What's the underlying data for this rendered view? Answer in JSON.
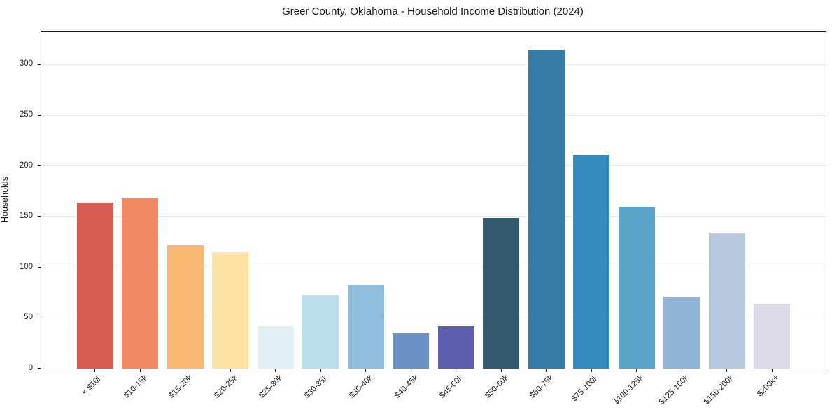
{
  "chart_data": {
    "type": "bar",
    "title": "Greer County, Oklahoma - Household Income Distribution (2024)",
    "xlabel": "",
    "ylabel": "Households",
    "categories": [
      "< $10k",
      "$10-15k",
      "$15-20k",
      "$20-25k",
      "$25-30k",
      "$30-35k",
      "$35-40k",
      "$40-45k",
      "$45-50k",
      "$50-60k",
      "$60-75k",
      "$75-100k",
      "$100-125k",
      "$125-150k",
      "$150-200k",
      "$200k+"
    ],
    "values": [
      164,
      169,
      122,
      115,
      42,
      72,
      83,
      35,
      42,
      149,
      315,
      211,
      160,
      71,
      134,
      64
    ],
    "bar_colors": [
      "#d65c52",
      "#f08a64",
      "#f9b872",
      "#fce3a4",
      "#e2f0f4",
      "#badfeb",
      "#90bddc",
      "#6b91c5",
      "#5c60ae",
      "#33596e",
      "#347ca6",
      "#348abd",
      "#5ba4ca",
      "#91b5d7",
      "#b8c8de",
      "#dbdbe7"
    ],
    "y_ticks": [
      0,
      50,
      100,
      150,
      200,
      250,
      300
    ],
    "ylim": [
      0,
      332
    ],
    "grid": "horizontal-only",
    "legend_position": "none",
    "x_tick_rotation": 45,
    "background": "#ffffff",
    "grid_color": "#e9e9e9",
    "spine_color": "#111111",
    "text_color": "#1a1a1a"
  }
}
